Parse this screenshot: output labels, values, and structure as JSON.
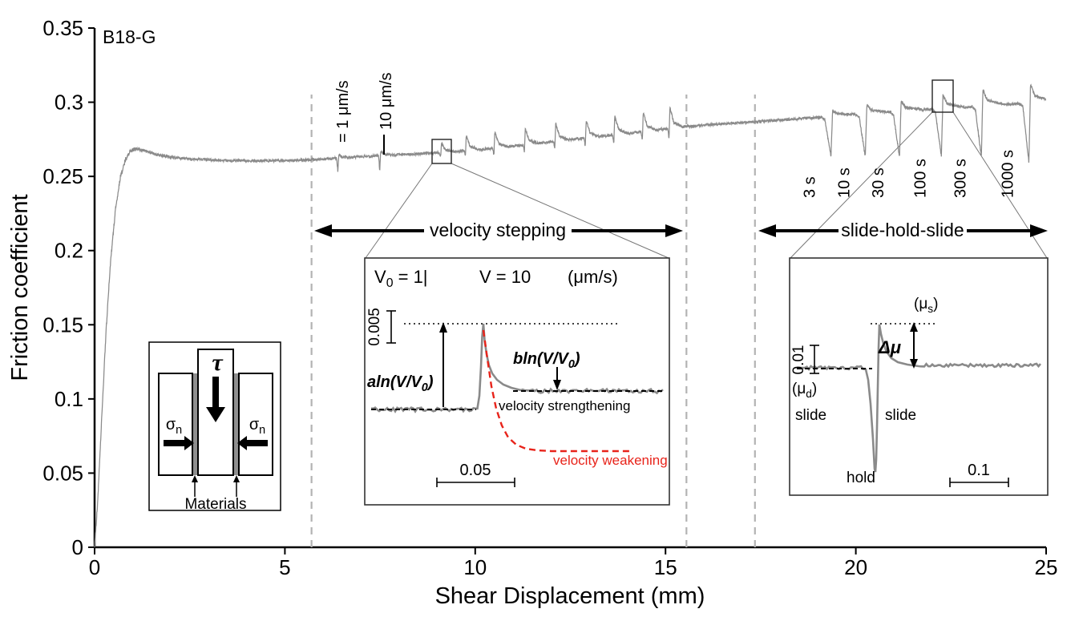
{
  "chart_data": {
    "type": "line",
    "title": "B18-G",
    "xlabel": "Shear Displacement (mm)",
    "ylabel": "Friction coefficient",
    "xlim": [
      0,
      25
    ],
    "ylim": [
      0,
      0.35
    ],
    "grid": false,
    "x_ticks": [
      0,
      5,
      10,
      15,
      20,
      25
    ],
    "x_tick_labels": [
      "0",
      "5",
      "10",
      "15",
      "20",
      "25"
    ],
    "y_ticks": [
      0,
      0.05,
      0.1,
      0.15,
      0.2,
      0.25,
      0.3,
      0.35
    ],
    "y_tick_labels": [
      "0",
      "0.05",
      "0.1",
      "0.15",
      "0.2",
      "0.25",
      "0.3",
      "0.35"
    ],
    "trace_color": "#8a8a8a",
    "series": [
      {
        "name": "friction coefficient vs shear displacement",
        "anchors": [
          [
            0,
            0
          ],
          [
            0.08,
            0.03
          ],
          [
            0.18,
            0.083
          ],
          [
            0.3,
            0.145
          ],
          [
            0.42,
            0.193
          ],
          [
            0.55,
            0.228
          ],
          [
            0.68,
            0.25
          ],
          [
            0.82,
            0.262
          ],
          [
            0.95,
            0.2675
          ],
          [
            1.1,
            0.2685
          ],
          [
            1.3,
            0.2675
          ],
          [
            1.6,
            0.265
          ],
          [
            2.0,
            0.263
          ],
          [
            2.5,
            0.2617
          ],
          [
            3.2,
            0.2608
          ],
          [
            4.2,
            0.2605
          ],
          [
            5.2,
            0.2608
          ],
          [
            5.7,
            0.2612
          ],
          [
            6.5,
            0.2625
          ],
          [
            7.5,
            0.264
          ],
          [
            8.5,
            0.2652
          ],
          [
            9.5,
            0.2668
          ],
          [
            10.5,
            0.269
          ],
          [
            11.5,
            0.2718
          ],
          [
            12.5,
            0.2748
          ],
          [
            13.5,
            0.2775
          ],
          [
            14.5,
            0.2805
          ],
          [
            15.5,
            0.2835
          ],
          [
            16.5,
            0.2855
          ],
          [
            17.35,
            0.2868
          ],
          [
            18.5,
            0.2888
          ],
          [
            19.5,
            0.2908
          ],
          [
            20.5,
            0.2928
          ],
          [
            21.5,
            0.2945
          ],
          [
            22.5,
            0.296
          ],
          [
            23.5,
            0.2978
          ],
          [
            24.5,
            0.2993
          ],
          [
            25,
            0.3005
          ]
        ]
      }
    ],
    "velocity_step_events": [
      {
        "x": 6.4,
        "down": 0.009,
        "up": 0.002,
        "label": "= 1 μm/s"
      },
      {
        "x": 7.5,
        "down": 0.01,
        "up": 0.003,
        "label": "10 μm/s"
      },
      {
        "x": 9.1,
        "down": 0.003,
        "up": 0.006
      },
      {
        "x": 9.75,
        "down": 0.004,
        "up": 0.01
      },
      {
        "x": 10.5,
        "down": 0.005,
        "up": 0.011
      },
      {
        "x": 11.3,
        "down": 0.005,
        "up": 0.011
      },
      {
        "x": 12.1,
        "down": 0.005,
        "up": 0.012
      },
      {
        "x": 12.9,
        "down": 0.006,
        "up": 0.012
      },
      {
        "x": 13.65,
        "down": 0.006,
        "up": 0.013
      },
      {
        "x": 14.4,
        "down": 0.006,
        "up": 0.013
      },
      {
        "x": 15.1,
        "down": 0.007,
        "up": 0.014
      }
    ],
    "slide_hold_slide_events": [
      {
        "x": 19.35,
        "hold": "3 s",
        "drop": 0.027,
        "peak": 0.004
      },
      {
        "x": 20.25,
        "hold": "10 s",
        "drop": 0.029,
        "peak": 0.006
      },
      {
        "x": 21.15,
        "hold": "30 s",
        "drop": 0.031,
        "peak": 0.007
      },
      {
        "x": 22.25,
        "hold": "100 s",
        "drop": 0.032,
        "peak": 0.009
      },
      {
        "x": 23.3,
        "hold": "300 s",
        "drop": 0.034,
        "peak": 0.011
      },
      {
        "x": 24.55,
        "hold": "1000 s",
        "drop": 0.04,
        "peak": 0.013
      }
    ],
    "section_dividers_x": [
      5.7,
      15.55,
      17.35
    ]
  },
  "labels": {
    "sample": "B18-G",
    "velocity_stepping": "velocity stepping",
    "slide_hold_slide": "slide-hold-slide",
    "v_step_1": "= 1 μm/s",
    "v_step_10": "10 μm/s"
  },
  "inset_vstep": {
    "v0_label": [
      [
        "V",
        false
      ],
      [
        "0",
        true
      ],
      [
        " = 1|",
        false
      ]
    ],
    "v_label": "V = 10",
    "units_label": "(μm/s)",
    "vscale_label": "0.005",
    "hscale_label": "0.05",
    "a_label": [
      [
        "aln(V/V",
        false
      ],
      [
        "0",
        true
      ],
      [
        ")",
        false
      ]
    ],
    "b_label": [
      [
        "bln(V/V",
        false
      ],
      [
        "0",
        true
      ],
      [
        ")",
        false
      ]
    ],
    "strengthening_label": "velocity strengthening",
    "weakening_label": "velocity weakening",
    "weakening_color": "#e8231a"
  },
  "inset_shs": {
    "mu_s_label": [
      [
        "(μ",
        false
      ],
      [
        "s",
        true
      ],
      [
        ")",
        false
      ]
    ],
    "mu_d_label": [
      [
        "(μ",
        false
      ],
      [
        "d",
        true
      ],
      [
        ")",
        false
      ]
    ],
    "delta_mu_label": "Δμ",
    "slide_left_label": "slide",
    "slide_right_label": "slide",
    "hold_label": "hold",
    "vscale_label": "0.01",
    "hscale_label": "0.1"
  },
  "inset_schematic": {
    "tau_label": "τ",
    "sigma_left_label": [
      [
        "σ",
        false
      ],
      [
        "n",
        true
      ]
    ],
    "sigma_right_label": [
      [
        "σ",
        false
      ],
      [
        "n",
        true
      ]
    ],
    "materials_label": "Materials"
  }
}
